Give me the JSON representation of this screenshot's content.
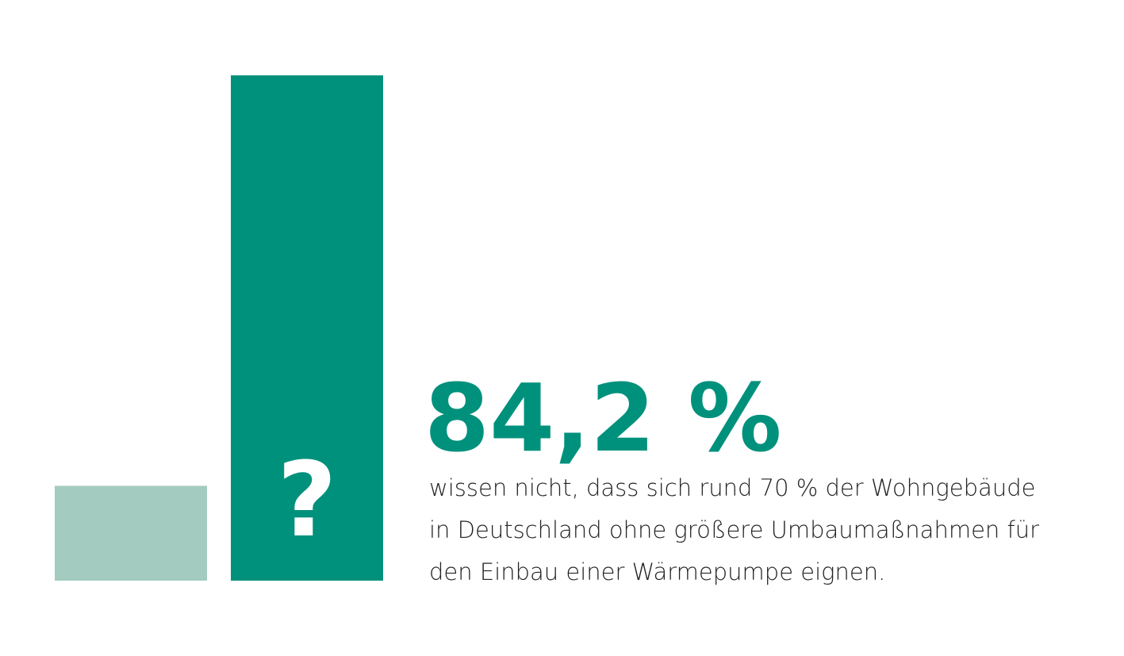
{
  "chart_data": {
    "type": "bar",
    "categories": [
      null,
      null
    ],
    "values": [
      15.8,
      84.2
    ],
    "value_labels": [
      null,
      "84,2 %"
    ],
    "colors": [
      "#a3cbbf",
      "#00917c"
    ],
    "annotation": "?",
    "description": [
      "wissen nicht, dass sich rund 70 % der Wohngebäude",
      "in Deutschland ohne größere Umbaumaßnahmen für",
      "den Einbau einer Wärmepumpe eignen."
    ],
    "ylim": [
      0,
      84.2
    ]
  }
}
